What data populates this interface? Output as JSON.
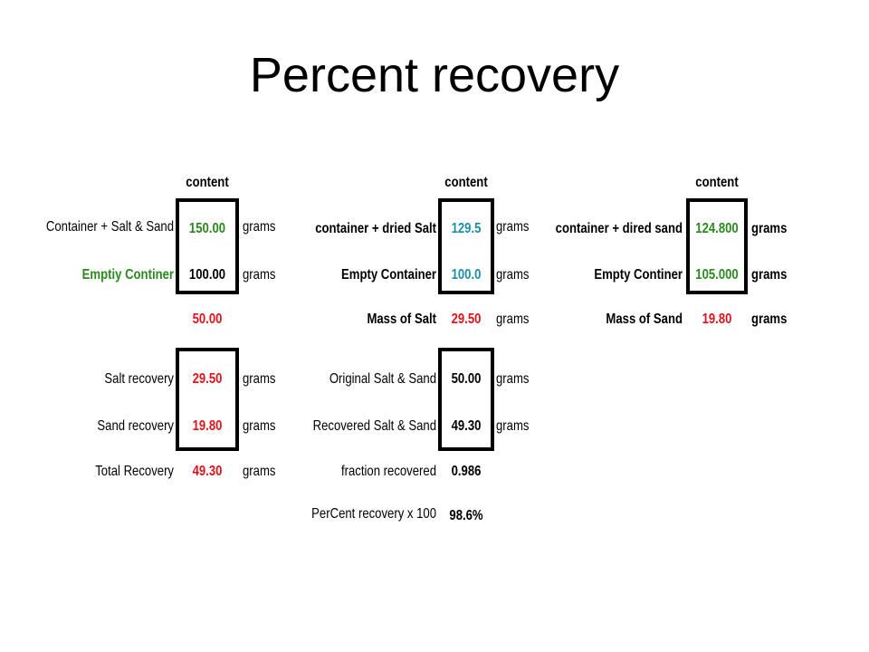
{
  "title": "Percent recovery",
  "colors": {
    "green": "#2b8a1e",
    "red": "#e3121c",
    "teal": "#1a8fa6",
    "black": "#000000"
  },
  "units": "grams",
  "header": "content",
  "block1": {
    "rows": [
      {
        "label": "Container + Salt & Sand",
        "value": "150.00"
      },
      {
        "label": "Emptiy Continer",
        "value": "100.00"
      }
    ],
    "difference": "50.00"
  },
  "block2": {
    "rows": [
      {
        "label": "container + dried Salt",
        "value": "129.5"
      },
      {
        "label": "Empty Container",
        "value": "100.0"
      },
      {
        "label": "Mass of Salt",
        "value": "29.50"
      }
    ]
  },
  "block3": {
    "rows": [
      {
        "label": "container + dired sand",
        "value": "124.800"
      },
      {
        "label": "Empty Continer",
        "value": "105.000"
      },
      {
        "label": "Mass of Sand",
        "value": "19.80"
      }
    ]
  },
  "block4": {
    "rows": [
      {
        "label": "Salt recovery",
        "value": "29.50"
      },
      {
        "label": "Sand recovery",
        "value": "19.80"
      },
      {
        "label": "Total Recovery",
        "value": "49.30"
      }
    ]
  },
  "block5": {
    "rows": [
      {
        "label": "Original Salt & Sand",
        "value": "50.00"
      },
      {
        "label": "Recovered Salt & Sand",
        "value": "49.30"
      },
      {
        "label": "fraction recovered",
        "value": "0.986"
      },
      {
        "label": "PerCent recovery x 100",
        "value": "98.6%"
      }
    ]
  }
}
